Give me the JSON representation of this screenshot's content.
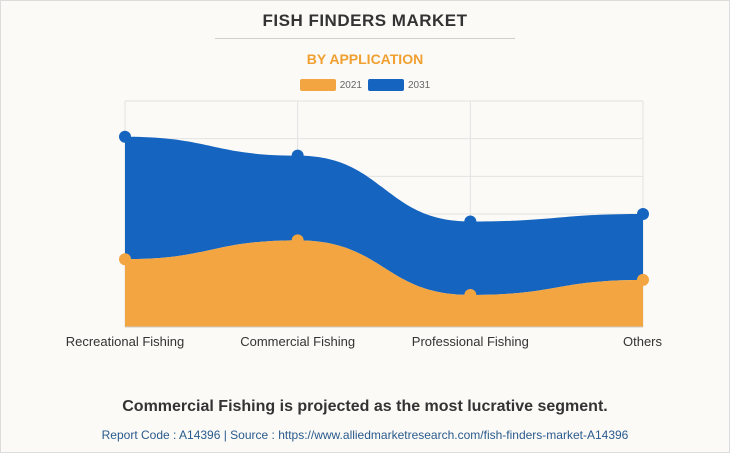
{
  "header": {
    "title": "FISH FINDERS MARKET",
    "subtitle": "BY APPLICATION"
  },
  "colors": {
    "series_2021": "#f2a541",
    "series_2031": "#1565c0"
  },
  "footer": {
    "headline": "Commercial Fishing is projected as the most lucrative segment.",
    "source": "Report Code : A14396  |  Source : https://www.alliedmarketresearch.com/fish-finders-market-A14396"
  },
  "chart_data": {
    "type": "area",
    "stacked": true,
    "categories": [
      "Recreational Fishing",
      "Commercial Fishing",
      "Professional Fishing",
      "Others"
    ],
    "series": [
      {
        "name": "2021",
        "values": [
          18,
          23,
          8.5,
          12.5
        ]
      },
      {
        "name": "2031",
        "values": [
          32.5,
          22.5,
          19.5,
          17.5
        ]
      }
    ],
    "ylim": [
      0,
      60
    ],
    "grid": true,
    "legend": "top-center"
  }
}
